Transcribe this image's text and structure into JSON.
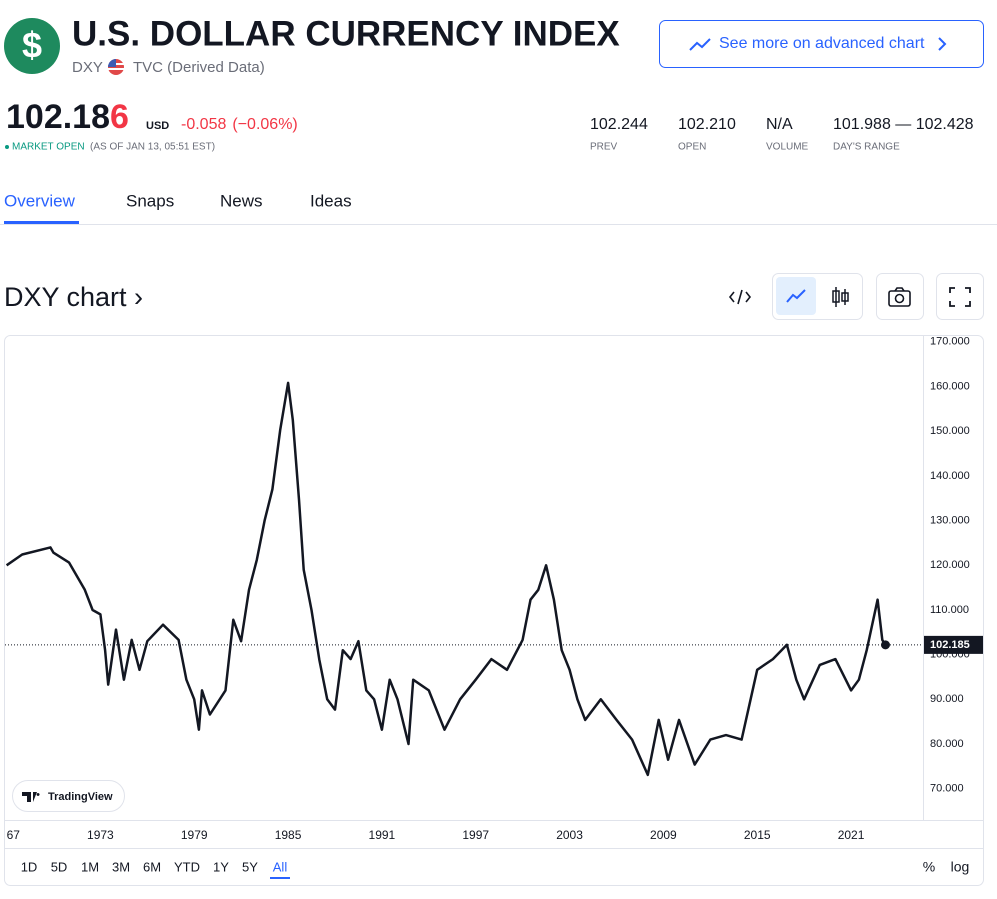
{
  "header": {
    "logo": "$",
    "title": "U.S. DOLLAR CURRENCY INDEX",
    "ticker": "DXY",
    "source": "TVC (Derived Data)",
    "advanced_button": "See more on advanced chart"
  },
  "quote": {
    "price_main": "102.18",
    "price_last_digit": "6",
    "currency": "USD",
    "change": "-0.058",
    "change_pct": "(−0.06%)",
    "status": "MARKET OPEN",
    "as_of": "(AS OF JAN 13, 05:51 EST)",
    "stats": [
      {
        "value": "102.244",
        "label": "PREV"
      },
      {
        "value": "102.210",
        "label": "OPEN"
      },
      {
        "value": "N/A",
        "label": "VOLUME"
      },
      {
        "value": "101.988 — 102.428",
        "label": "DAY'S RANGE"
      }
    ]
  },
  "tabs": [
    "Overview",
    "Snaps",
    "News",
    "Ideas"
  ],
  "section_title": "DXY chart ›",
  "watermark": "TradingView",
  "ranges": [
    "1D",
    "5D",
    "1M",
    "3M",
    "6M",
    "YTD",
    "1Y",
    "5Y",
    "All"
  ],
  "scale_options": [
    "%",
    "log"
  ],
  "chart_data": {
    "type": "line",
    "x": [
      1967,
      1968,
      1969.8,
      1970,
      1971,
      1972,
      1972.5,
      1973,
      1973.3,
      1973.5,
      1974,
      1974.5,
      1975,
      1975.5,
      1976,
      1977,
      1978,
      1978.5,
      1979,
      1979.3,
      1979.5,
      1980,
      1981,
      1981.5,
      1982,
      1982.5,
      1983,
      1983.5,
      1984,
      1984.5,
      1985,
      1985.3,
      1985.7,
      1986,
      1986.5,
      1987,
      1987.5,
      1988,
      1988.5,
      1989,
      1989.5,
      1990,
      1990.5,
      1991,
      1991.5,
      1992,
      1992.7,
      1993,
      1994,
      1995,
      1996,
      1997,
      1998,
      1999,
      2000,
      2000.5,
      2001,
      2001.5,
      2002,
      2002.5,
      2003,
      2003.5,
      2004,
      2005,
      2006,
      2007,
      2008,
      2008.7,
      2009.3,
      2010,
      2011,
      2012,
      2013,
      2014,
      2015,
      2016,
      2016.9,
      2017.5,
      2018,
      2019,
      2020,
      2021,
      2021.5,
      2022,
      2022.7,
      2023,
      2023.2
    ],
    "series": [
      {
        "name": "DXY",
        "color": "#131722",
        "values": [
          120,
          122.4,
          124,
          122.8,
          120.6,
          114.5,
          110,
          109,
          101,
          93.3,
          105.6,
          94.4,
          103.3,
          96.6,
          103,
          106.7,
          103.3,
          94.4,
          90,
          83.2,
          92,
          86.6,
          92,
          107.8,
          103,
          114.5,
          121.2,
          130,
          137,
          150.3,
          160.8,
          152.5,
          134.7,
          119,
          110,
          98.9,
          90,
          87.7,
          101,
          99,
          103,
          92,
          90,
          83.2,
          94.4,
          90,
          80,
          94.4,
          92,
          83.2,
          90,
          94.4,
          99,
          96.6,
          103.3,
          112.3,
          114.5,
          120,
          112.3,
          101,
          96.6,
          90,
          85.4,
          90,
          85.4,
          81,
          73.1,
          85.4,
          76.5,
          85.4,
          75.4,
          81,
          82,
          81,
          96.6,
          99,
          102.2,
          94.4,
          90,
          97.7,
          99,
          92,
          94.4,
          101,
          112.3,
          103.3,
          102.185
        ]
      }
    ],
    "price_line": 102.185,
    "xlim": [
      1966.9,
      2025.6
    ],
    "xticks": [
      {
        "value": 1967,
        "label": "67"
      },
      1973,
      1979,
      1985,
      1991,
      1997,
      2003,
      2009,
      2015,
      2021
    ],
    "ylim": [
      63,
      171.3
    ],
    "yticks": [
      {
        "value": 70,
        "label": "70.000"
      },
      {
        "value": 80,
        "label": "80.000"
      },
      {
        "value": 90,
        "label": "90.000"
      },
      {
        "value": 100,
        "label": "100.000"
      },
      {
        "value": 110,
        "label": "110.000"
      },
      {
        "value": 120,
        "label": "120.000"
      },
      {
        "value": 130,
        "label": "130.000"
      },
      {
        "value": 140,
        "label": "140.000"
      },
      {
        "value": 150,
        "label": "150.000"
      },
      {
        "value": 160,
        "label": "160.000"
      },
      {
        "value": 170,
        "label": "170.000"
      }
    ],
    "grid": false
  }
}
